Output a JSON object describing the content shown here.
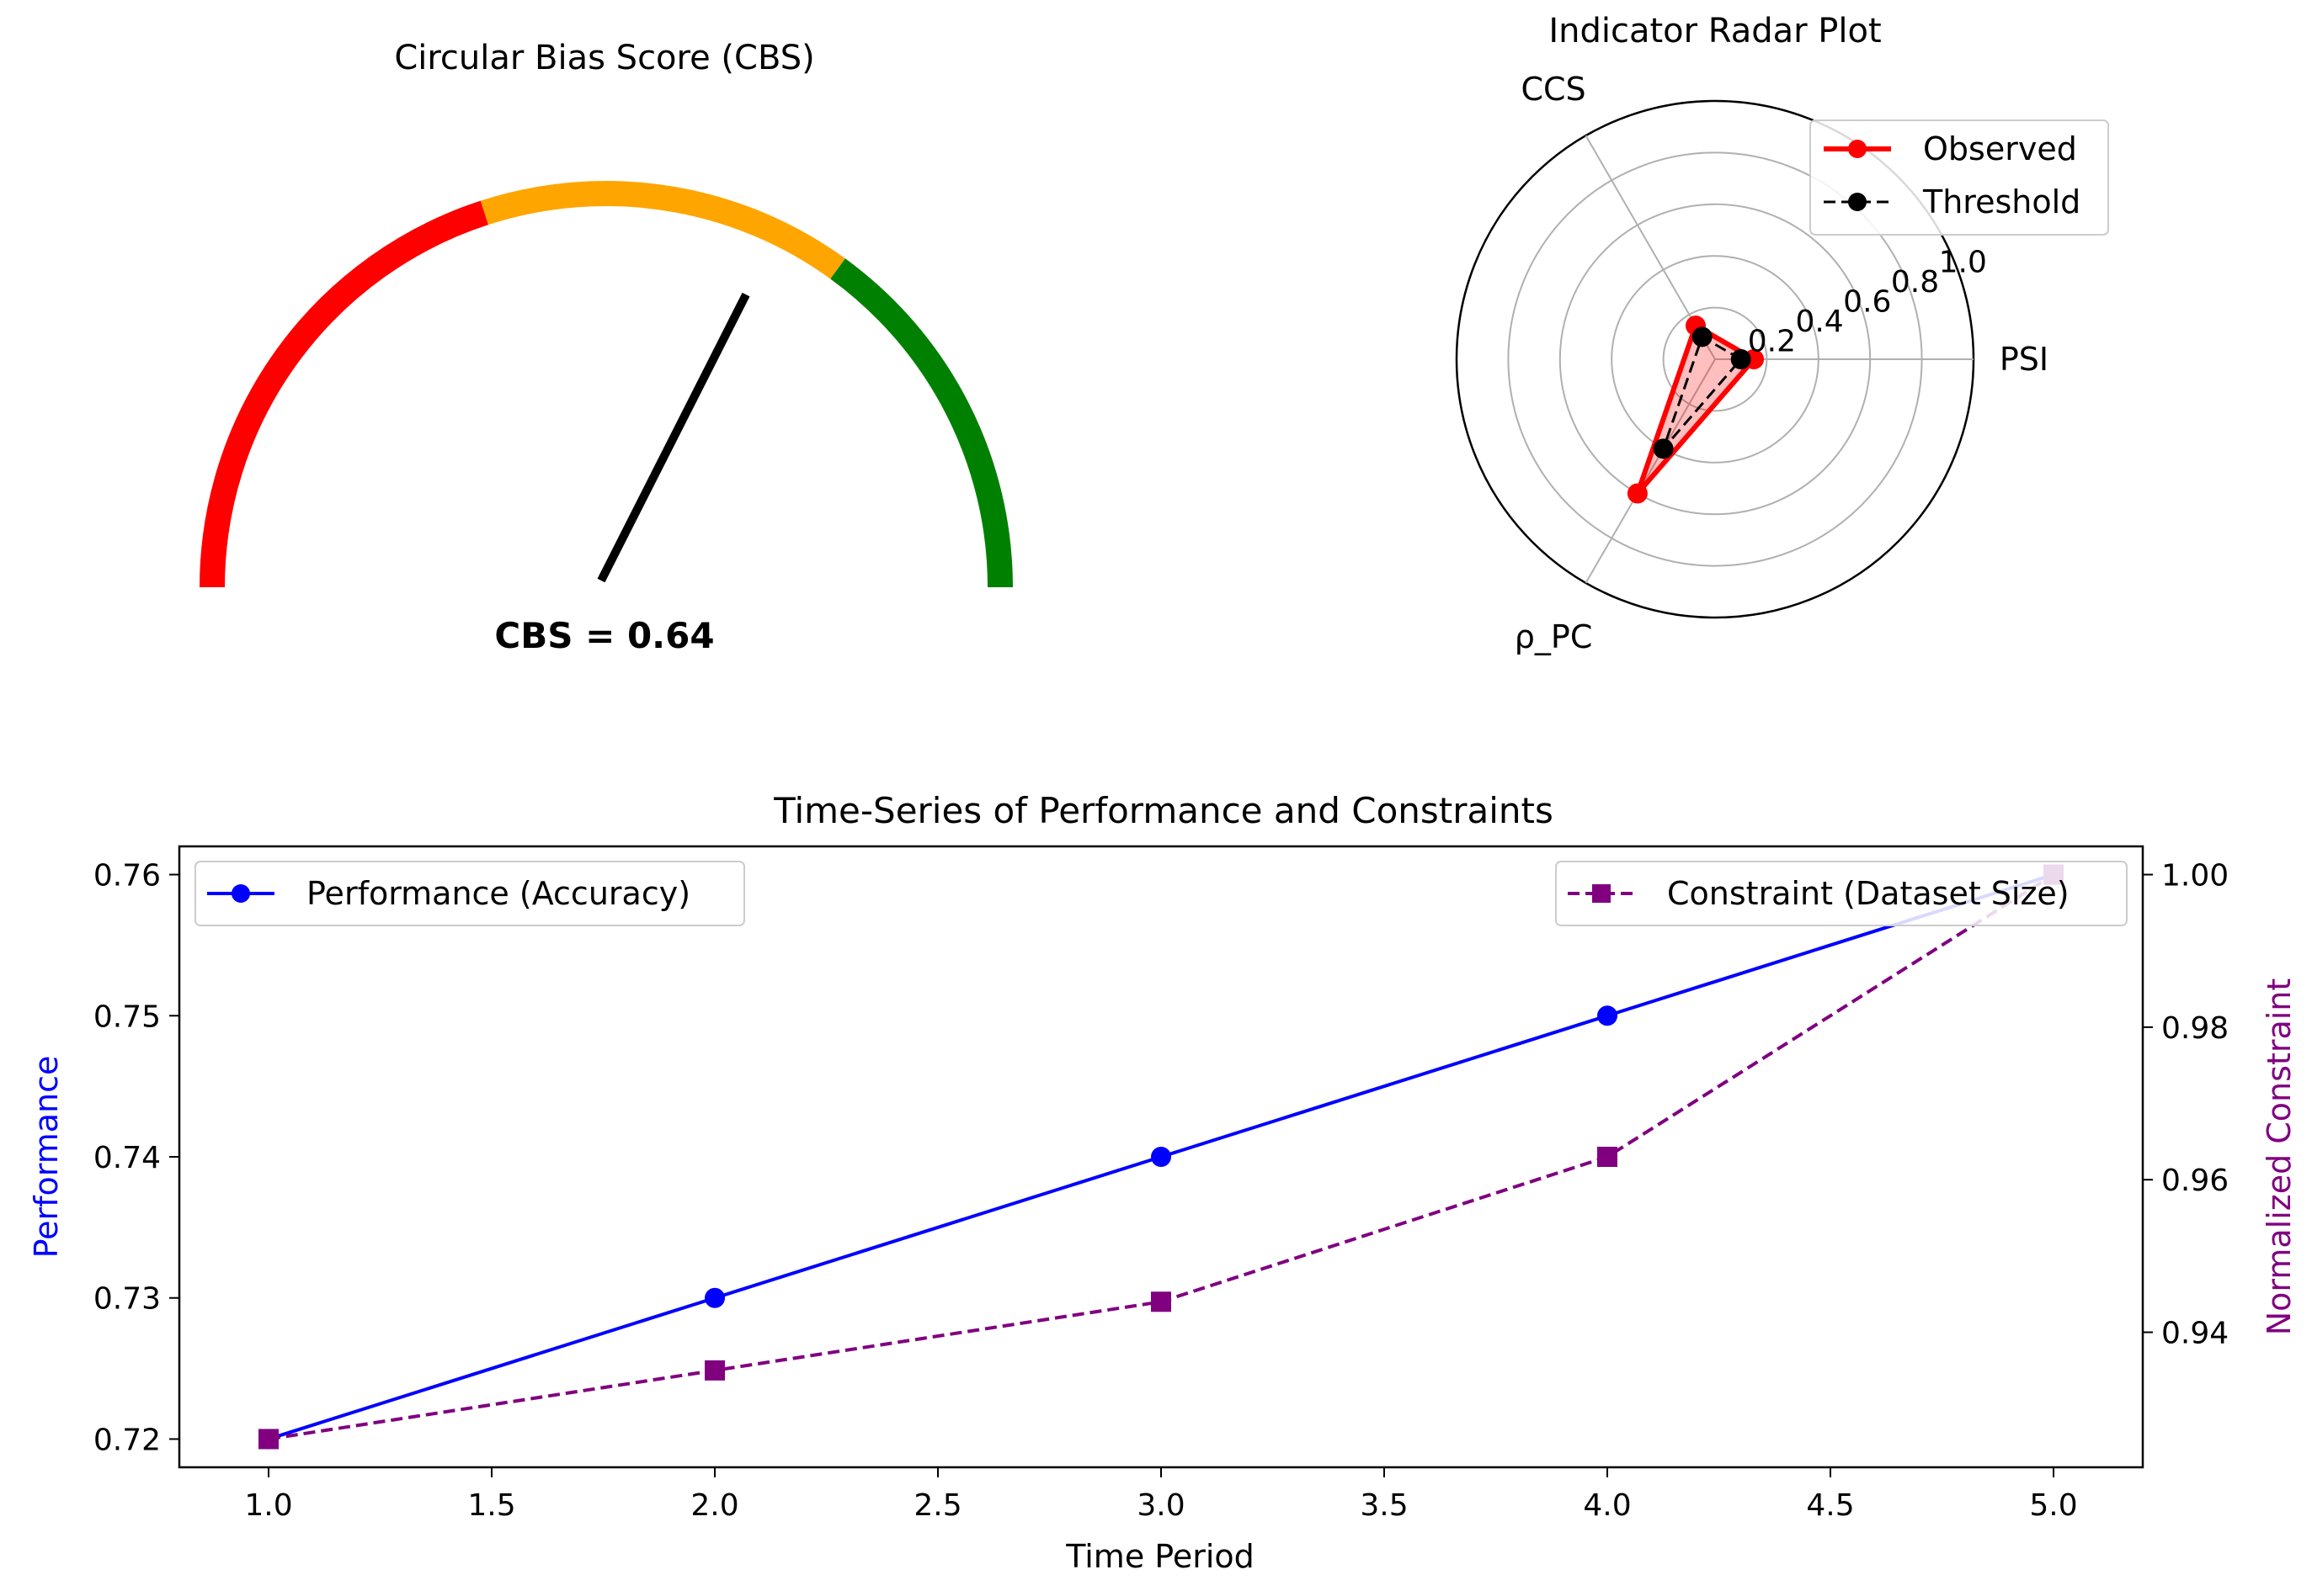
{
  "chart_data": [
    {
      "type": "gauge",
      "title": "Circular Bias Score (CBS)",
      "value": 0.64,
      "value_label": "CBS = 0.64",
      "range": [
        0,
        1
      ],
      "bands": [
        {
          "from": 0.0,
          "to": 0.4,
          "color": "#ff0000"
        },
        {
          "from": 0.4,
          "to": 0.7,
          "color": "#ffa500"
        },
        {
          "from": 0.7,
          "to": 1.0,
          "color": "#008000"
        }
      ],
      "needle_color": "#000000"
    },
    {
      "type": "radar",
      "title": "Indicator Radar Plot",
      "axes": [
        "PSI",
        "CCS",
        "ρ_PC"
      ],
      "rlim": [
        0,
        1.0
      ],
      "rticks": [
        "0.2",
        "0.4",
        "0.6",
        "0.8",
        "1.0"
      ],
      "series": [
        {
          "name": "Observed",
          "values": [
            0.15,
            0.15,
            0.6
          ],
          "color": "#ff0000",
          "fill": "#ff0000",
          "style": "solid"
        },
        {
          "name": "Threshold",
          "values": [
            0.1,
            0.1,
            0.4
          ],
          "color": "#000000",
          "style": "dashed"
        }
      ],
      "legend": "top-right"
    },
    {
      "type": "line",
      "title": "Time-Series of Performance and Constraints",
      "xlabel": "Time Period",
      "x": [
        1.0,
        2.0,
        3.0,
        4.0,
        5.0
      ],
      "xlim": [
        0.8,
        5.2
      ],
      "xticks": [
        "1.0",
        "1.5",
        "2.0",
        "2.5",
        "3.0",
        "3.5",
        "4.0",
        "4.5",
        "5.0"
      ],
      "left_axis": {
        "label": "Performance",
        "color": "#0000ff",
        "ylim": [
          0.718,
          0.762
        ],
        "ticks": [
          "0.72",
          "0.73",
          "0.74",
          "0.75",
          "0.76"
        ]
      },
      "right_axis": {
        "label": "Normalized Constraint",
        "color": "#800080",
        "ylim": [
          0.9223,
          1.0037
        ],
        "ticks": [
          "0.94",
          "0.96",
          "0.98",
          "1.00"
        ]
      },
      "series": [
        {
          "name": "Performance (Accuracy)",
          "axis": "left",
          "values": [
            0.72,
            0.73,
            0.74,
            0.75,
            0.76
          ],
          "color": "#0000ff",
          "marker": "circle",
          "style": "solid"
        },
        {
          "name": "Constraint (Dataset Size)",
          "axis": "right",
          "values": [
            0.926,
            0.935,
            0.944,
            0.963,
            1.0
          ],
          "color": "#800080",
          "marker": "square",
          "style": "dashed"
        }
      ],
      "legends": [
        "upper-left",
        "upper-right"
      ]
    }
  ]
}
